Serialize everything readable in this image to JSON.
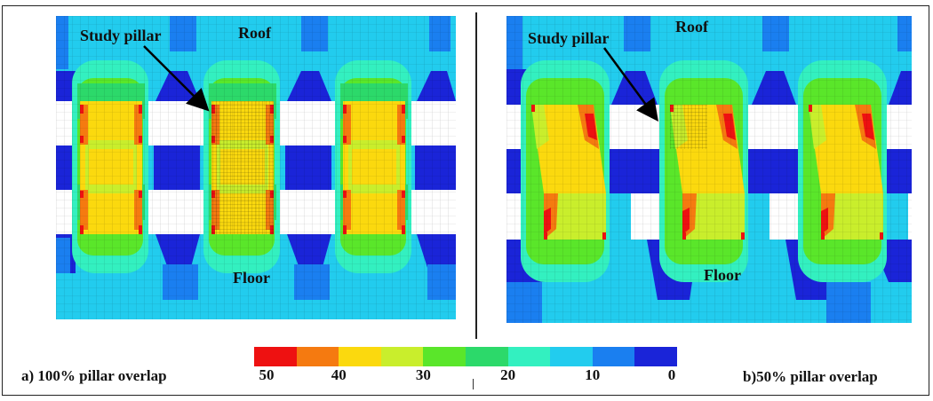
{
  "panel_a": {
    "caption": "a) 100% pillar overlap",
    "study_label": "Study pillar",
    "roof_label": "Roof",
    "floor_label": "Floor"
  },
  "panel_b": {
    "caption": "b)50% pillar overlap",
    "study_label": "Study pillar",
    "roof_label": "Roof",
    "floor_label": "Floor"
  },
  "colorbar": {
    "colors": [
      "#ee1111",
      "#f57a10",
      "#fbd90e",
      "#c9ee2c",
      "#5ae62a",
      "#2cd96a",
      "#33f0c0",
      "#22ccee",
      "#1a7ff0",
      "#1a24d8"
    ],
    "ticks": [
      "50",
      "40",
      "30",
      "20",
      "10",
      "0"
    ]
  },
  "chart_data": {
    "type": "heatmap",
    "title": "",
    "colorbar_range": [
      0,
      50
    ],
    "colorbar_ticks": [
      50,
      40,
      30,
      20,
      10,
      0
    ],
    "panels": [
      {
        "caption": "a) 100% pillar overlap",
        "pillar_overlap_percent": 100,
        "labels": [
          "Study pillar",
          "Roof",
          "Floor"
        ]
      },
      {
        "caption": "b)50% pillar overlap",
        "pillar_overlap_percent": 50,
        "labels": [
          "Study pillar",
          "Roof",
          "Floor"
        ]
      }
    ]
  }
}
